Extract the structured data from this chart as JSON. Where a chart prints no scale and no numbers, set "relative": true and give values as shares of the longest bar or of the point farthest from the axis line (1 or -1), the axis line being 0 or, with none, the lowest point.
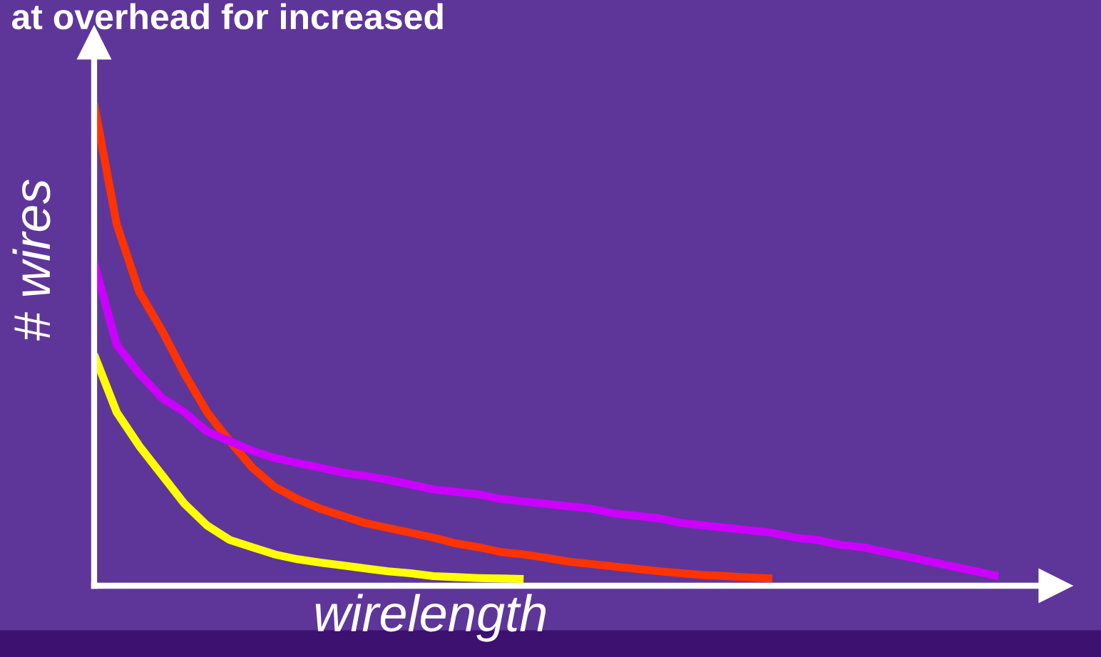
{
  "chart_data": {
    "type": "line",
    "title": "at overhead for increased",
    "xlabel": "wirelength",
    "ylabel": "# wires",
    "relative": true,
    "legend": false,
    "marker": "none",
    "line_style": "solid",
    "categories": [
      null,
      null,
      null,
      null,
      null,
      null,
      null,
      null,
      null,
      null,
      null,
      null,
      null,
      null,
      null,
      null,
      null,
      null,
      null,
      null,
      null,
      null,
      null,
      null,
      null,
      null,
      null,
      null,
      null,
      null,
      null,
      null,
      null,
      null,
      null,
      null,
      null,
      null,
      null,
      null,
      null
    ],
    "series": [
      {
        "color": "#ff3300",
        "values": [
          1.0,
          0.75,
          0.61,
          0.53,
          0.44,
          0.36,
          0.3,
          0.245,
          0.205,
          0.18,
          0.16,
          0.145,
          0.13,
          0.12,
          0.11,
          0.1,
          0.088,
          0.08,
          0.07,
          0.065,
          0.058,
          0.05,
          0.045,
          0.04,
          0.035,
          0.03,
          0.026,
          0.022,
          0.02,
          0.017,
          0.015,
          null,
          null,
          null,
          null,
          null,
          null,
          null,
          null,
          null,
          null
        ]
      },
      {
        "color": "#cc00ff",
        "values": [
          0.67,
          0.5,
          0.44,
          0.39,
          0.36,
          0.32,
          0.3,
          0.28,
          0.265,
          0.255,
          0.245,
          0.235,
          0.228,
          0.22,
          0.21,
          0.2,
          0.195,
          0.19,
          0.18,
          0.175,
          0.17,
          0.165,
          0.16,
          0.15,
          0.145,
          0.14,
          0.13,
          0.125,
          0.12,
          0.115,
          0.11,
          0.1,
          0.095,
          0.085,
          0.08,
          0.07,
          0.06,
          0.05,
          0.04,
          0.03,
          0.02
        ]
      },
      {
        "color": "#ffff00",
        "values": [
          0.48,
          0.36,
          0.29,
          0.23,
          0.17,
          0.125,
          0.095,
          0.08,
          0.065,
          0.055,
          0.048,
          0.042,
          0.036,
          0.03,
          0.026,
          0.02,
          0.018,
          0.016,
          0.015,
          0.014,
          null,
          null,
          null,
          null,
          null,
          null,
          null,
          null,
          null,
          null,
          null,
          null,
          null,
          null,
          null,
          null,
          null,
          null,
          null,
          null,
          null
        ]
      }
    ]
  }
}
